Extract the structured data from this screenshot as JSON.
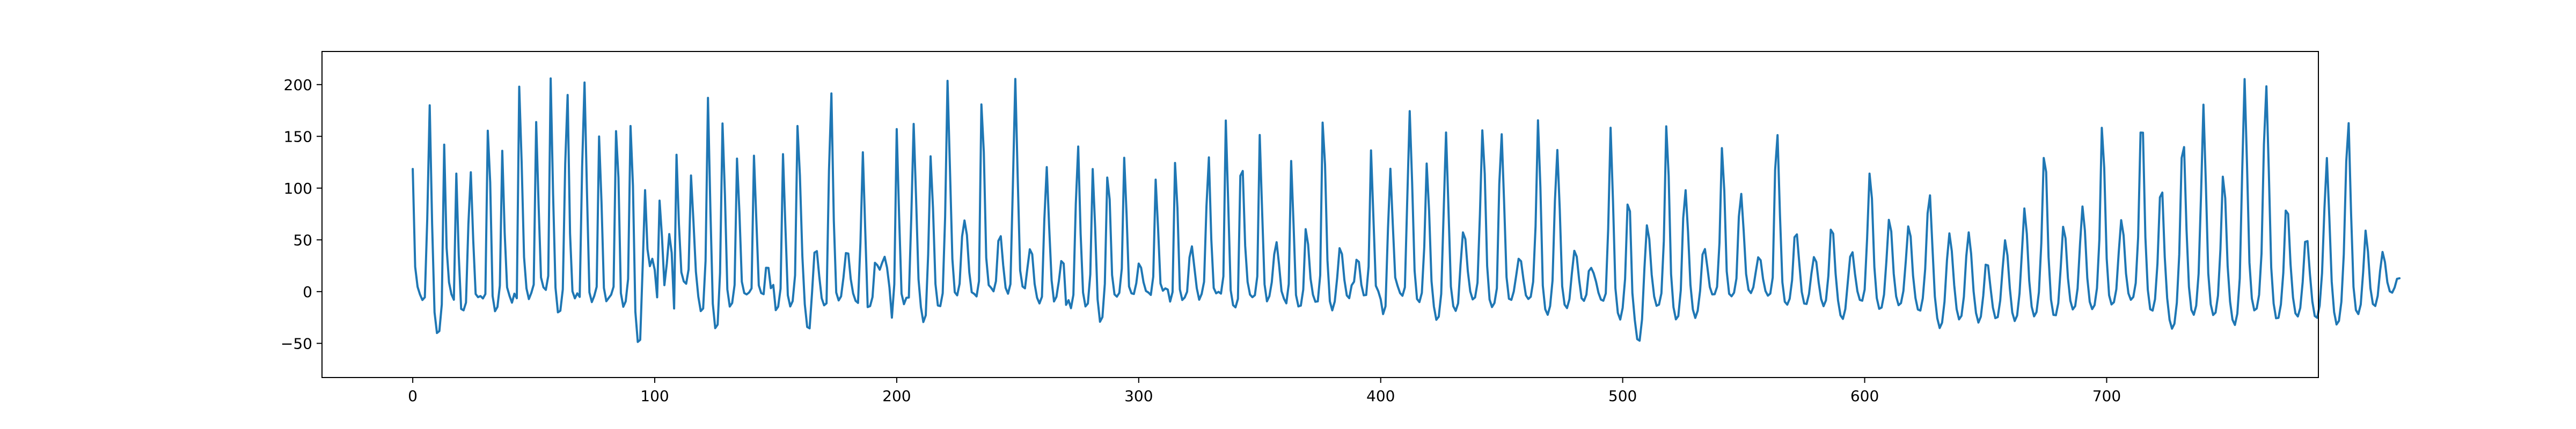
{
  "chart_data": {
    "type": "line",
    "title": "",
    "xlabel": "",
    "ylabel": "",
    "xlim": [
      -37.5,
      787.5
    ],
    "ylim": [
      -83,
      232
    ],
    "x_ticks": [
      0,
      100,
      200,
      300,
      400,
      500,
      600,
      700
    ],
    "y_ticks": [
      -50,
      0,
      50,
      100,
      150,
      200
    ],
    "grid": false,
    "legend": "none",
    "series": [
      {
        "color": "#1f77b4",
        "x_start": 0,
        "x_step": 1,
        "y": [
          118.5,
          24.0,
          4.6,
          -2.8,
          -8.1,
          -5.5,
          69.7,
          180.0,
          65.0,
          -20.0,
          -40.0,
          -38.1,
          -12.4,
          142.0,
          42.2,
          8.9,
          -2.6,
          -7.8,
          114.0,
          35.2,
          -16.7,
          -18.1,
          -10.6,
          65.1,
          115.3,
          49.7,
          -2.3,
          -5.4,
          -4.3,
          -6.6,
          -2.4,
          155.5,
          105.7,
          -4.2,
          -18.9,
          -14.8,
          5.8,
          136.0,
          56.7,
          4.1,
          -4.2,
          -10.7,
          -2.0,
          -6.4,
          198.0,
          124.9,
          33.3,
          3.1,
          -7.2,
          -1.3,
          6.8,
          163.8,
          83.6,
          13.6,
          4.2,
          1.7,
          15.2,
          206.0,
          94.3,
          3.8,
          -20.0,
          -18.5,
          2.2,
          123.5,
          190.0,
          56.1,
          0.3,
          -6.5,
          -1.7,
          -5.1,
          120.1,
          202.0,
          97.0,
          -0.7,
          -10.1,
          -4.2,
          4.6,
          149.9,
          86.5,
          3.5,
          -9.3,
          -6.1,
          -3.0,
          4.7,
          155.0,
          110.1,
          -1.4,
          -14.6,
          -9.4,
          12.2,
          160.0,
          102.5,
          -19.4,
          -48.6,
          -46.6,
          23.8,
          98.0,
          41.0,
          24.6,
          31.7,
          21.0,
          -5.5,
          87.9,
          52.9,
          6.2,
          27.0,
          55.6,
          37.4,
          -16.3,
          132.2,
          64.8,
          18.7,
          9.9,
          7.6,
          21.4,
          112.2,
          68.3,
          19.2,
          -4.8,
          -18.8,
          -16.3,
          29.6,
          187.2,
          79.7,
          -11.7,
          -35.3,
          -31.9,
          18.1,
          162.4,
          93.5,
          2.2,
          -14.4,
          -11.0,
          6.4,
          128.5,
          76.6,
          9.6,
          -1.4,
          -2.7,
          -0.8,
          3.1,
          131.3,
          68.2,
          6.0,
          -1.4,
          -2.5,
          23.0,
          22.9,
          3.3,
          6.4,
          -17.9,
          -14.5,
          3.0,
          132.8,
          62.4,
          -3.5,
          -14.3,
          -9.2,
          15.8,
          160.0,
          112.2,
          34.1,
          -12.2,
          -34.2,
          -35.5,
          -1.3,
          37.6,
          39.1,
          14.6,
          -6.4,
          -13.2,
          -11.3,
          117.0,
          191.5,
          68.6,
          -0.9,
          -8.5,
          -4.6,
          13.8,
          37.2,
          36.8,
          12.2,
          -1.8,
          -8.9,
          -10.9,
          47.2,
          134.6,
          58.4,
          -14.9,
          -14.0,
          -5.3,
          27.8,
          25.5,
          21.2,
          28.1,
          33.6,
          23.1,
          4.0,
          -25.2,
          7.1,
          157.0,
          72.0,
          -2.0,
          -12.1,
          -6.0,
          -5.7,
          71.1,
          162.0,
          90.0,
          12.0,
          -15.1,
          -29.4,
          -22.9,
          35.8,
          130.7,
          80.7,
          7.3,
          -13.4,
          -14.0,
          -1.5,
          72.0,
          203.6,
          118.6,
          31.6,
          -0.6,
          -3.6,
          7.6,
          53.2,
          68.7,
          54.7,
          18.6,
          -0.6,
          -2.1,
          -4.6,
          10.1,
          180.8,
          134.8,
          32.7,
          6.3,
          3.7,
          0.3,
          10.1,
          49.0,
          53.5,
          25.6,
          3.7,
          -2.0,
          7.2,
          101.7,
          205.4,
          109.1,
          20.4,
          4.9,
          3.2,
          22.6,
          40.9,
          36.1,
          7.4,
          -5.9,
          -11.4,
          -5.0,
          70.0,
          120.3,
          62.0,
          11.0,
          -9.5,
          -5.0,
          10.0,
          29.5,
          27.1,
          -12.8,
          -8.3,
          -16.0,
          -3.1,
          84.7,
          140.2,
          55.8,
          -0.9,
          -14.3,
          -11.5,
          16.8,
          118.4,
          61.3,
          -7.4,
          -29.1,
          -24.6,
          7.6,
          110.2,
          89.0,
          16.0,
          -2.7,
          -4.8,
          -1.2,
          22.3,
          129.3,
          73.5,
          4.9,
          -1.6,
          -2.3,
          8.1,
          27.1,
          23.0,
          9.0,
          0.6,
          -0.9,
          -3.2,
          14.4,
          108.2,
          61.0,
          7.8,
          0.9,
          3.1,
          2.0,
          -9.6,
          -0.4,
          124.3,
          80.6,
          2.1,
          -8.1,
          -5.7,
          -0.1,
          33.1,
          43.7,
          23.5,
          3.3,
          -7.8,
          -2.3,
          9.5,
          82.9,
          129.7,
          50.3,
          3.5,
          -1.6,
          -0.2,
          -1.9,
          14.7,
          165.3,
          83.5,
          1.4,
          -13.1,
          -15.2,
          -7.0,
          111.9,
          116.5,
          44.4,
          9.3,
          -2.9,
          -5.4,
          -3.4,
          14.8,
          151.3,
          77.5,
          7.1,
          -9.4,
          -4.4,
          9.1,
          36.0,
          47.7,
          26.2,
          0.5,
          -6.8,
          -11.3,
          7.2,
          126.2,
          64.3,
          -3.3,
          -14.3,
          -13.5,
          1.9,
          60.3,
          45.5,
          12.6,
          -3.0,
          -9.8,
          -9.4,
          15.8,
          163.3,
          122.8,
          30.4,
          -9.4,
          -18.1,
          -9.6,
          13.1,
          41.9,
          36.2,
          11.2,
          -3.7,
          -6.3,
          6.1,
          9.6,
          30.7,
          28.7,
          6.6,
          -3.6,
          -3.2,
          24.3,
          136.4,
          70.8,
          5.6,
          0.4,
          -7.4,
          -21.7,
          -14.2,
          60.7,
          118.7,
          64.6,
          13.6,
          5.4,
          -1.4,
          -4.0,
          4.2,
          90.6,
          174.4,
          105.3,
          20.2,
          -7.1,
          -10.1,
          -1.2,
          43.0,
          123.7,
          78.1,
          10.2,
          -14.5,
          -27.2,
          -24.2,
          -2.2,
          76.1,
          153.7,
          80.5,
          5.0,
          -14.1,
          -18.6,
          -11.3,
          25.8,
          57.2,
          50.7,
          19.6,
          0.2,
          -7.5,
          -5.6,
          8.6,
          74.2,
          155.8,
          113.8,
          24.8,
          -7.6,
          -14.9,
          -11.0,
          3.2,
          103.8,
          152.0,
          86.0,
          14.0,
          -6.9,
          -8.0,
          0.1,
          15.5,
          31.7,
          29.3,
          11.5,
          -3.6,
          -7.1,
          -5.0,
          9.5,
          63.0,
          165.5,
          101.0,
          5.8,
          -17.0,
          -22.4,
          -14.0,
          10.6,
          87.9,
          136.8,
          79.1,
          5.2,
          -12.6,
          -15.9,
          -7.4,
          17.4,
          39.4,
          33.8,
          11.4,
          -6.3,
          -8.9,
          -2.9,
          19.8,
          22.9,
          17.8,
          9.6,
          -1.1,
          -7.7,
          -8.8,
          -1.8,
          60.4,
          158.3,
          87.2,
          3.2,
          -20.5,
          -27.0,
          -15.7,
          12.2,
          84.1,
          77.6,
          -1.3,
          -27.4,
          -45.9,
          -47.4,
          -26.8,
          22.9,
          64.0,
          50.7,
          16.3,
          -4.7,
          -13.7,
          -12.6,
          -1.6,
          48.8,
          159.7,
          111.9,
          16.9,
          -15.1,
          -26.8,
          -23.6,
          1.3,
          70.9,
          97.9,
          57.8,
          6.6,
          -17.2,
          -25.4,
          -18.5,
          0.8,
          35.8,
          41.1,
          23.3,
          4.4,
          -2.7,
          -2.5,
          4.6,
          47.4,
          138.6,
          97.3,
          19.6,
          -2.1,
          -4.5,
          -1.1,
          12.7,
          72.5,
          94.4,
          58.6,
          17.1,
          1.8,
          -1.4,
          4.2,
          18.9,
          33.1,
          30.3,
          12.2,
          0.6,
          -3.9,
          -1.9,
          13.6,
          117.7,
          151.2,
          74.2,
          9.1,
          -9.8,
          -12.6,
          -6.9,
          11.1,
          52.6,
          55.3,
          27.1,
          -0.3,
          -11.5,
          -11.9,
          -2.4,
          17.4,
          33.3,
          28.7,
          8.5,
          -7.2,
          -14.1,
          -8.4,
          15.2,
          59.8,
          56.0,
          17.2,
          -8.5,
          -22.9,
          -26.3,
          -16.9,
          8.6,
          33.7,
          38.0,
          17.1,
          0.3,
          -8.0,
          -8.8,
          1.9,
          51.5,
          114.0,
          89.8,
          23.9,
          -6.2,
          -16.6,
          -15.4,
          -2.9,
          30.1,
          69.3,
          58.1,
          17.3,
          -4.6,
          -13.1,
          -11.1,
          0.6,
          29.7,
          63.0,
          53.2,
          15.4,
          -6.2,
          -17.3,
          -18.3,
          -6.6,
          21.8,
          75.6,
          93.0,
          43.2,
          -4.6,
          -25.7,
          -35.2,
          -30.0,
          -9.8,
          30.4,
          56.2,
          39.1,
          6.2,
          -16.9,
          -26.8,
          -23.4,
          -4.9,
          34.4,
          57.2,
          36.7,
          0.3,
          -20.6,
          -29.9,
          -24.2,
          -3.9,
          26.0,
          25.3,
          4.0,
          -15.5,
          -25.6,
          -24.6,
          -8.7,
          22.4,
          49.6,
          35.0,
          2.9,
          -20.2,
          -28.4,
          -23.1,
          -1.7,
          38.6,
          80.3,
          55.9,
          10.4,
          -14.5,
          -23.9,
          -19.8,
          -0.7,
          46.8,
          129.1,
          115.6,
          33.5,
          -7.6,
          -22.5,
          -22.8,
          -11.2,
          22.8,
          62.6,
          51.5,
          13.2,
          -8.8,
          -17.2,
          -14.0,
          3.1,
          46.7,
          82.2,
          58.9,
          13.1,
          -9.8,
          -16.9,
          -13.1,
          3.3,
          50.5,
          158.2,
          119.7,
          32.0,
          -3.5,
          -12.4,
          -10.2,
          2.4,
          38.3,
          69.0,
          54.4,
          17.5,
          -1.7,
          -7.9,
          -5.2,
          8.3,
          52.3,
          153.6,
          153.5,
          52.6,
          1.9,
          -17.0,
          -18.3,
          -7.3,
          26.9,
          91.1,
          95.7,
          33.4,
          -6.2,
          -27.3,
          -35.8,
          -31.1,
          -10.8,
          35.8,
          129.2,
          139.6,
          59.4,
          4.6,
          -17.6,
          -22.4,
          -13.6,
          17.3,
          93.2,
          180.6,
          104.0,
          17.6,
          -12.1,
          -22.6,
          -20.2,
          -3.8,
          40.4,
          111.0,
          90.3,
          24.6,
          -9.6,
          -27.1,
          -32.2,
          -21.4,
          12.9,
          115.7,
          205.3,
          122.5,
          28.1,
          -6.7,
          -18.1,
          -16.3,
          -3.1,
          36.7,
          142.1,
          198.3,
          116.5,
          23.2,
          -11.6,
          -25.7,
          -25.4,
          -12.5,
          18.2,
          78.3,
          75.0,
          26.4,
          -5.7,
          -21.0,
          -24.0,
          -15.8,
          9.2,
          48.1,
          48.8,
          17.1,
          -9.5,
          -23.6,
          -25.3,
          -13.6,
          17.8,
          80.9,
          129.0,
          72.6,
          9.7,
          -19.8,
          -31.7,
          -28.3,
          -9.9,
          35.9,
          125.7,
          162.7,
          75.4,
          4.6,
          -17.8,
          -21.7,
          -12.5,
          18.9,
          58.9,
          38.4,
          3.4,
          -11.9,
          -13.9,
          -4.2,
          20.3,
          38.3,
          28.5,
          9.0,
          0.3,
          -1.0,
          3.9,
          12.4,
          12.9
        ]
      }
    ]
  }
}
